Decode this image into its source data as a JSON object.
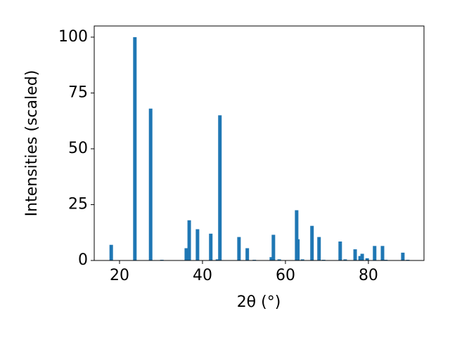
{
  "chart_data": {
    "type": "bar",
    "color": "#1f77b4",
    "xlabel": "2θ (°)",
    "ylabel": "Intensities (scaled)",
    "x": [
      18.0,
      23.7,
      27.5,
      30.2,
      36.1,
      36.8,
      38.8,
      42.0,
      43.6,
      44.2,
      48.8,
      50.8,
      52.5,
      56.6,
      57.1,
      58.5,
      62.7,
      63.0,
      64.1,
      66.4,
      68.1,
      69.2,
      73.2,
      74.4,
      76.8,
      78.0,
      78.5,
      79.7,
      81.5,
      83.4,
      84.2,
      88.3,
      89.5
    ],
    "values": [
      7,
      100,
      68,
      0.3,
      5.5,
      18,
      14,
      12,
      0.5,
      65,
      10.5,
      5.5,
      0.3,
      1.5,
      11.5,
      0.5,
      22.5,
      9.5,
      0.5,
      15.5,
      10.5,
      0.3,
      8.5,
      0.5,
      5,
      2,
      3,
      1,
      6.5,
      6.5,
      0.3,
      3.5,
      0.3
    ],
    "xlim": [
      13.9,
      93.4
    ],
    "ylim": [
      0,
      105
    ],
    "xticks": [
      20,
      40,
      60,
      80
    ],
    "yticks": [
      0,
      25,
      50,
      75,
      100
    ]
  }
}
